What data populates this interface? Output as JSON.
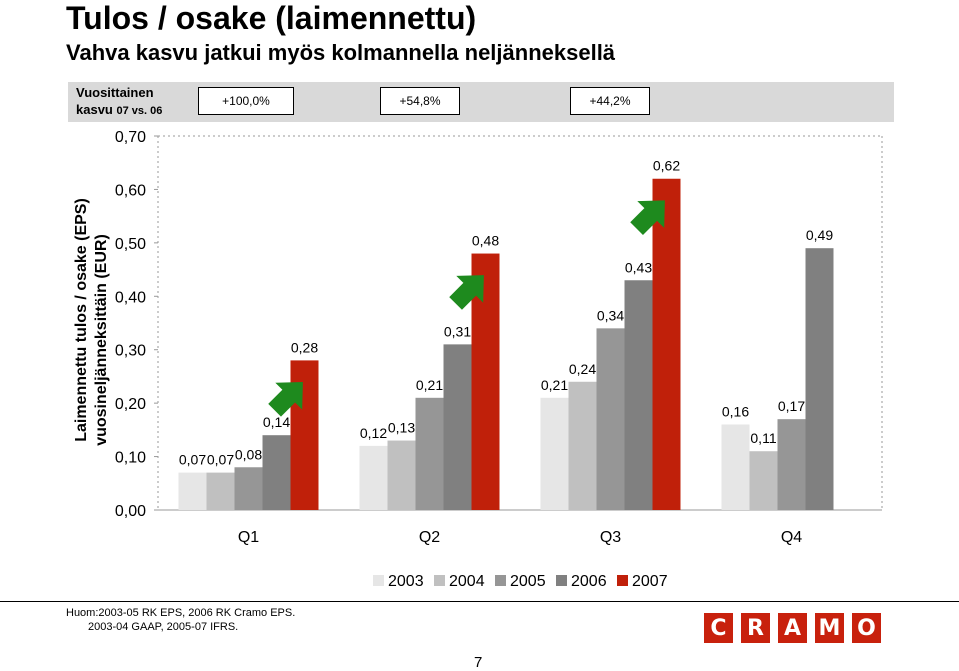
{
  "title": "Tulos / osake (laimennettu)",
  "subtitle": "Vahva kasvu jatkui myös kolmannella neljänneksellä",
  "growth": {
    "label_line1": "Vuosittainen",
    "label_line2": "kasvu",
    "label_small": "07 vs. 06",
    "values": [
      "+100,0%",
      "+54,8%",
      "+44,2%"
    ]
  },
  "chart_data": {
    "type": "bar",
    "categories": [
      "Q1",
      "Q2",
      "Q3",
      "Q4"
    ],
    "series": [
      {
        "name": "2003",
        "values": [
          0.07,
          0.12,
          0.21,
          0.16
        ],
        "color": "#e6e6e6"
      },
      {
        "name": "2004",
        "values": [
          0.07,
          0.13,
          0.24,
          0.11
        ],
        "color": "#c0c0c0"
      },
      {
        "name": "2005",
        "values": [
          0.08,
          0.21,
          0.34,
          0.17
        ],
        "color": "#969696"
      },
      {
        "name": "2006",
        "values": [
          0.14,
          0.31,
          0.43,
          0.49
        ],
        "color": "#808080"
      },
      {
        "name": "2007",
        "values": [
          0.28,
          0.48,
          0.62,
          null
        ],
        "color": "#c0200a"
      }
    ],
    "data_labels": [
      [
        "0,07",
        "0,07",
        "0,08",
        "0,14",
        "0,28"
      ],
      [
        "0,12",
        "0,13",
        "0,21",
        "0,31",
        "0,48"
      ],
      [
        "0,21",
        "0,24",
        "0,34",
        "0,43",
        "0,62"
      ],
      [
        "0,16",
        "0,11",
        "0,17",
        "0,49",
        ""
      ]
    ],
    "yticks": [
      "0,00",
      "0,10",
      "0,20",
      "0,30",
      "0,40",
      "0,50",
      "0,60",
      "0,70"
    ],
    "ylim": [
      0,
      0.7
    ],
    "ylabel_line1": "Laimennettu tulos / osake (EPS)",
    "ylabel_line2": "vuosineljänneksittäin (EUR)",
    "xlabel": "",
    "legend_position": "bottom",
    "growth_arrows": [
      "Q1",
      "Q2",
      "Q3"
    ],
    "arrow_color": "#1e8a1e"
  },
  "footnote": {
    "line1": "Huom:2003-05 RK EPS, 2006 RK Cramo EPS.",
    "line2": "2003-04 GAAP, 2005-07 IFRS."
  },
  "page_number": "7",
  "logo_letters": [
    "C",
    "R",
    "A",
    "M",
    "O"
  ]
}
